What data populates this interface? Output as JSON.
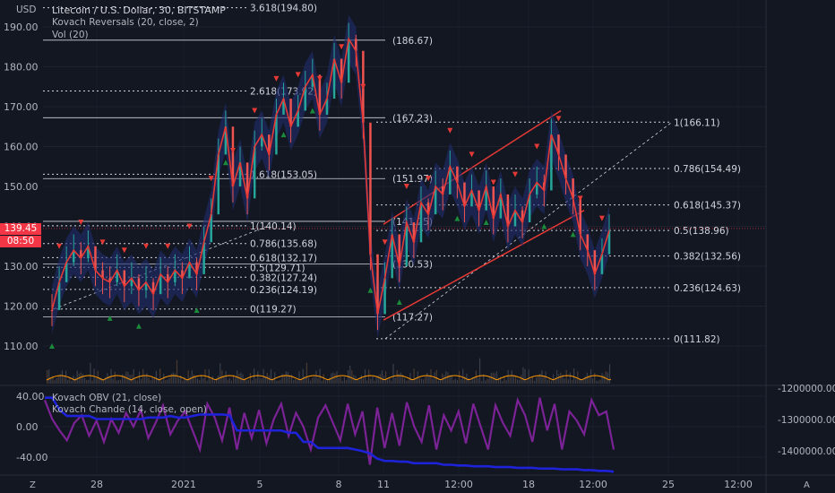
{
  "symbol": {
    "currency": "USD",
    "title": "Litecoin / U.S. Dollar, 30, BITSTAMP",
    "indicators": [
      "Kovach Reversals (20, close, 2)",
      "Vol (20)"
    ],
    "oscillators": [
      "Kovach OBV (21, close)",
      "Kovach Chande (14, close, open)"
    ],
    "price_label": "139.45",
    "countdown": "08:50",
    "corner_letters": [
      "Z",
      "A"
    ]
  },
  "colors": {
    "background": "#131722",
    "candle_up": "#26a69a",
    "candle_down": "#ef5350",
    "ma_line": "#e53935",
    "fib": "#d1d4dc",
    "channel": "#e53935",
    "obv": "#1e22d8",
    "chande": "#8e24aa",
    "volume": "#ff9800",
    "signal_up": "#1b8a3a",
    "signal_down": "#e53935"
  },
  "chart_data": [
    {
      "type": "line",
      "title": "Litecoin / U.S. Dollar, 30, BITSTAMP",
      "x_ticks": [
        "28",
        "2021",
        "5",
        "8",
        "11",
        "12:00",
        "18",
        "12:00",
        "25",
        "12:00"
      ],
      "y_ticks": [
        "190.00",
        "180.00",
        "170.00",
        "160.00",
        "150.00",
        "140.00",
        "130.00",
        "120.00",
        "110.00"
      ],
      "ylim": [
        103,
        192
      ],
      "series": [
        {
          "values": [
            119,
            126,
            131,
            134,
            132,
            135,
            129,
            127,
            126,
            129,
            125,
            127,
            124,
            126,
            123,
            128,
            126,
            129,
            127,
            131,
            128,
            136,
            143,
            158,
            165,
            150,
            156,
            147,
            160,
            163,
            158,
            168,
            172,
            165,
            169,
            175,
            178,
            168,
            172,
            182,
            176,
            187,
            184,
            166,
            133,
            118,
            127,
            138,
            130,
            141,
            136,
            146,
            143,
            150,
            148,
            155,
            151,
            145,
            149,
            144,
            150,
            142,
            148,
            140,
            144,
            141,
            148,
            151,
            149,
            163,
            158,
            152,
            147,
            138,
            134,
            128,
            133,
            139
          ]
        }
      ],
      "fib_left": [
        {
          "label": "3.618(194.80)",
          "value": 194.8
        },
        {
          "label": "2.618(173.92)",
          "value": 173.92
        },
        {
          "label": "1.618(153.05)",
          "value": 153.05
        },
        {
          "label": "1(140.14)",
          "value": 140.14
        },
        {
          "label": "0.786(135.68)",
          "value": 135.68
        },
        {
          "label": "0.618(132.17)",
          "value": 132.17
        },
        {
          "label": "0.5(129.71)",
          "value": 129.71
        },
        {
          "label": "0.382(127.24)",
          "value": 127.24
        },
        {
          "label": "0.236(124.19)",
          "value": 124.19
        },
        {
          "label": "0(119.27)",
          "value": 119.27
        }
      ],
      "levels_mid": [
        {
          "label": "(186.67)",
          "value": 186.67
        },
        {
          "label": "(167.23)",
          "value": 167.23
        },
        {
          "label": "(151.97)",
          "value": 151.97
        },
        {
          "label": "(141.25)",
          "value": 141.25
        },
        {
          "label": "(130.53)",
          "value": 130.53
        },
        {
          "label": "(117.27)",
          "value": 117.27
        }
      ],
      "fib_right": [
        {
          "label": "1(166.11)",
          "value": 166.11
        },
        {
          "label": "0.786(154.49)",
          "value": 154.49
        },
        {
          "label": "0.618(145.37)",
          "value": 145.37
        },
        {
          "label": "0.5(138.96)",
          "value": 138.96
        },
        {
          "label": "0.382(132.56)",
          "value": 132.56
        },
        {
          "label": "0.236(124.63)",
          "value": 124.63
        },
        {
          "label": "0(111.82)",
          "value": 111.82
        }
      ]
    },
    {
      "type": "line",
      "y_ticks": [
        "40.00",
        "0.00",
        "-40.00"
      ],
      "y_ticks_right": [
        "-1200000.00",
        "-1300000.00",
        "-1400000.00"
      ],
      "ylim": [
        -60,
        52
      ],
      "series": [
        {
          "name": "Kovach Chande (14, close, open)",
          "values": [
            35,
            10,
            -5,
            -18,
            5,
            15,
            -12,
            8,
            -20,
            10,
            -8,
            18,
            0,
            22,
            -15,
            5,
            28,
            -10,
            8,
            20,
            -5,
            -30,
            30,
            12,
            -18,
            25,
            -30,
            18,
            -15,
            22,
            -22,
            10,
            30,
            -12,
            18,
            0,
            -30,
            12,
            28,
            5,
            -18,
            30,
            -10,
            20,
            -50,
            25,
            -28,
            18,
            -25,
            32,
            0,
            -20,
            28,
            -30,
            15,
            -5,
            20,
            -22,
            30,
            0,
            -30,
            28,
            5,
            -12,
            35,
            15,
            -20,
            38,
            -5,
            30,
            -30,
            20,
            8,
            -10,
            35,
            15,
            20,
            -30
          ]
        },
        {
          "name": "Kovach OBV (21, close)",
          "values": [
            38,
            38,
            22,
            14,
            14,
            14,
            14,
            10,
            10,
            10,
            10,
            10,
            10,
            10,
            12,
            12,
            12,
            14,
            12,
            12,
            14,
            16,
            16,
            16,
            16,
            15,
            -5,
            -5,
            -5,
            -5,
            -5,
            -5,
            -5,
            -8,
            -8,
            -20,
            -20,
            -28,
            -28,
            -28,
            -28,
            -28,
            -30,
            -32,
            -35,
            -42,
            -45,
            -45,
            -46,
            -46,
            -48,
            -48,
            -48,
            -48,
            -50,
            -50,
            -51,
            -51,
            -52,
            -52,
            -52,
            -53,
            -53,
            -53,
            -54,
            -54,
            -54,
            -55,
            -55,
            -55,
            -56,
            -56,
            -56,
            -57,
            -57,
            -58,
            -58,
            -59
          ]
        }
      ]
    }
  ]
}
